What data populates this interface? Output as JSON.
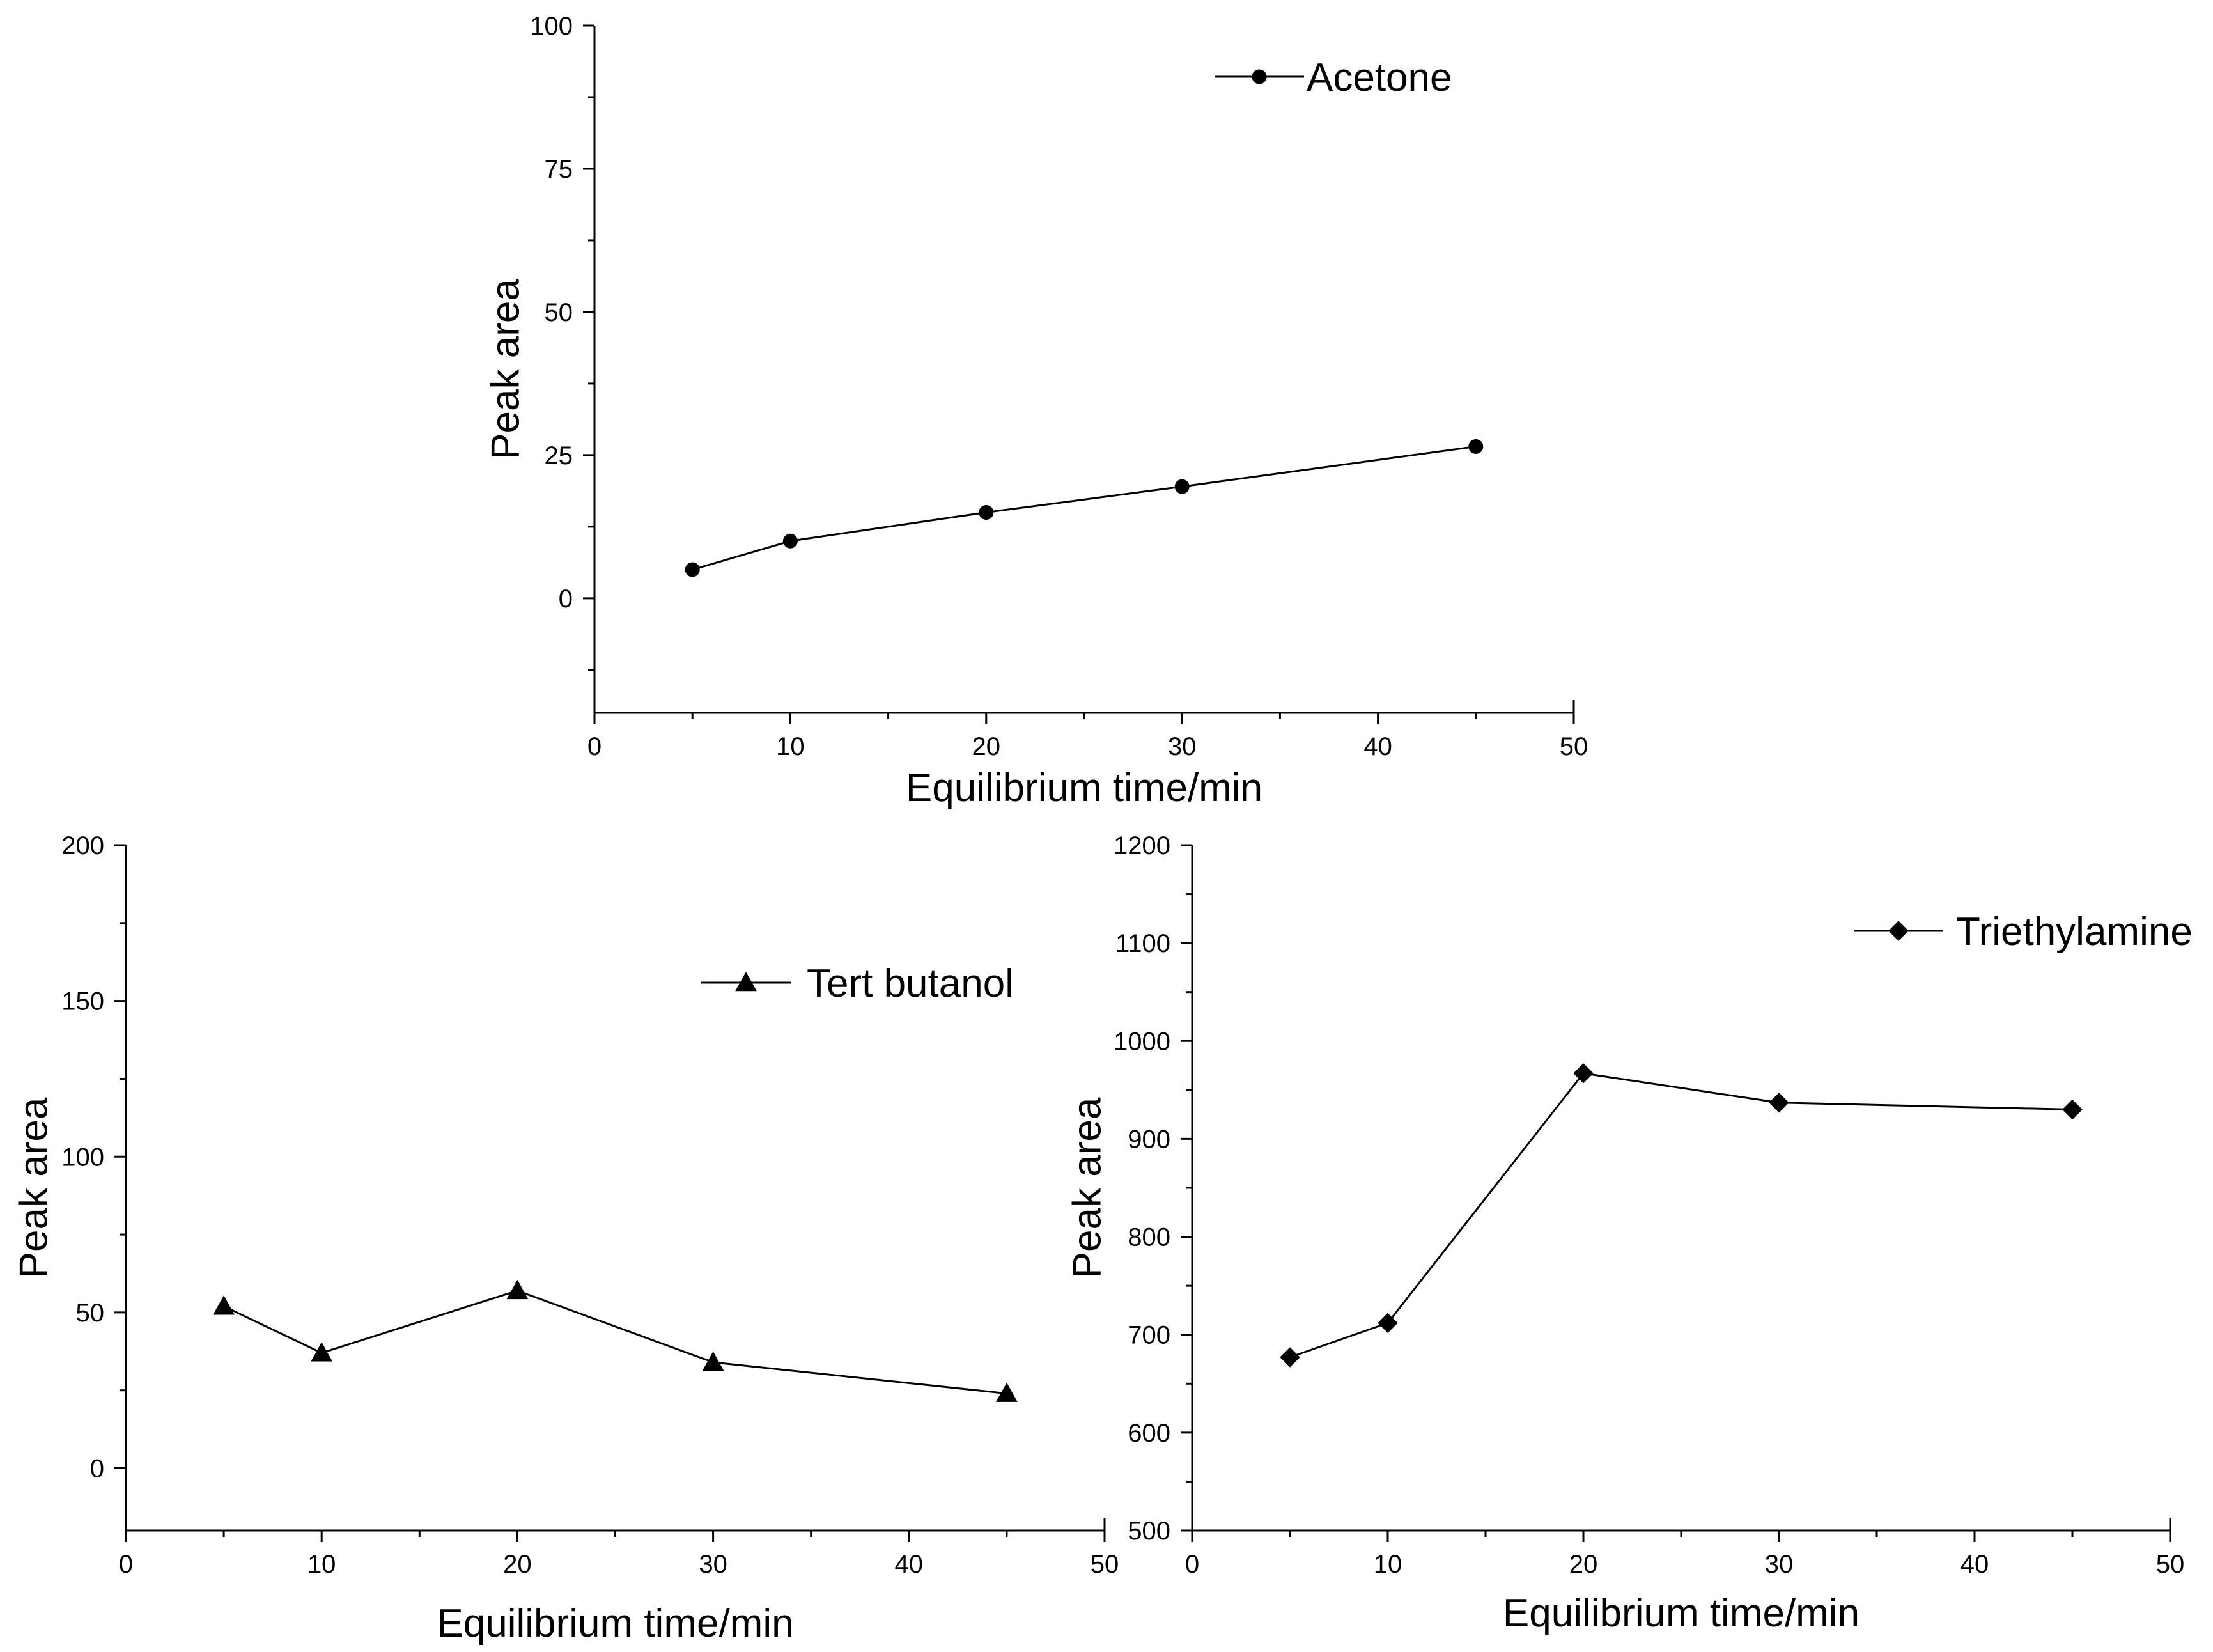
{
  "chart_data": [
    {
      "id": "acetone",
      "type": "line",
      "title": "",
      "xlabel": "Equilibrium time/min",
      "ylabel": "Peak area",
      "xlim": [
        0,
        50
      ],
      "ylim": [
        -20,
        100
      ],
      "xticks": [
        0,
        10,
        20,
        30,
        40,
        50
      ],
      "yticks": [
        0,
        25,
        50,
        75,
        100
      ],
      "x_tick_labels": [
        "0",
        "10",
        "20",
        "30",
        "40",
        "50"
      ],
      "y_tick_labels": [
        "0",
        "25",
        "50",
        "75",
        "100"
      ],
      "grid": false,
      "legend_position": "top-right",
      "series": [
        {
          "name": "Acetone",
          "marker": "circle",
          "x": [
            5,
            10,
            20,
            30,
            45
          ],
          "y": [
            5,
            10,
            15,
            19.5,
            26.5
          ]
        }
      ]
    },
    {
      "id": "tert-butanol",
      "type": "line",
      "title": "",
      "xlabel": "Equilibrium time/min",
      "ylabel": "Peak area",
      "xlim": [
        0,
        50
      ],
      "ylim": [
        -20,
        200
      ],
      "xticks": [
        0,
        10,
        20,
        30,
        40,
        50
      ],
      "yticks": [
        0,
        50,
        100,
        150,
        200
      ],
      "x_tick_labels": [
        "0",
        "10",
        "20",
        "30",
        "40",
        "50"
      ],
      "y_tick_labels": [
        "0",
        "50",
        "100",
        "150",
        "200"
      ],
      "grid": false,
      "legend_position": "top-right",
      "series": [
        {
          "name": "Tert butanol",
          "marker": "triangle",
          "x": [
            5,
            10,
            20,
            30,
            45
          ],
          "y": [
            52,
            37,
            57,
            34,
            24
          ]
        }
      ]
    },
    {
      "id": "triethylamine",
      "type": "line",
      "title": "",
      "xlabel": "Equilibrium time/min",
      "ylabel": "Peak area",
      "xlim": [
        0,
        50
      ],
      "ylim": [
        500,
        1200
      ],
      "xticks": [
        0,
        10,
        20,
        30,
        40,
        50
      ],
      "yticks": [
        500,
        600,
        700,
        800,
        900,
        1000,
        1100,
        1200
      ],
      "x_tick_labels": [
        "0",
        "10",
        "20",
        "30",
        "40",
        "50"
      ],
      "y_tick_labels": [
        "500",
        "600",
        "700",
        "800",
        "900",
        "1000",
        "1100",
        "1200"
      ],
      "grid": false,
      "legend_position": "top-right",
      "series": [
        {
          "name": "Triethylamine",
          "marker": "diamond",
          "x": [
            5,
            10,
            20,
            30,
            45
          ],
          "y": [
            677,
            712,
            967,
            937,
            930
          ]
        }
      ]
    }
  ]
}
